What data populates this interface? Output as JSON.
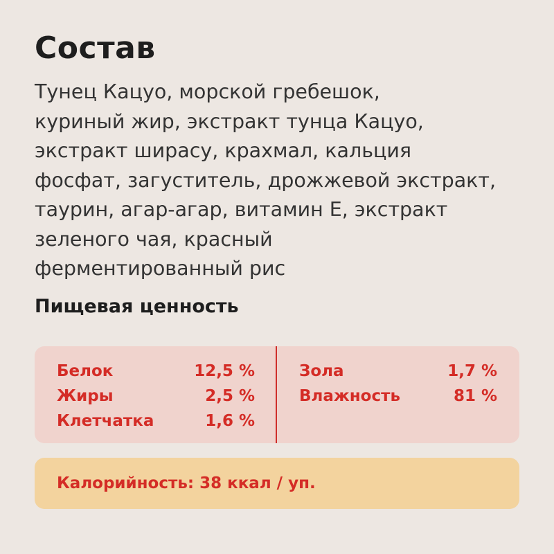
{
  "title": "Состав",
  "ingredients_lines": [
    "Тунец Кацуо, морской гребешок,",
    "куриный жир, экстракт тунца Кацуо,",
    "экстракт ширасу, крахмал, кальция",
    "фосфат, загуститель, дрожжевой экстракт,",
    "таурин, агар-агар, витамин Е, экстракт",
    "зеленого чая, красный",
    "ферментированный рис"
  ],
  "nutrition": {
    "title": "Пищевая ценность",
    "left": [
      {
        "label": "Белок",
        "value": "12,5 %"
      },
      {
        "label": "Жиры",
        "value": "2,5 %"
      },
      {
        "label": "Клетчатка",
        "value": "1,6 %"
      }
    ],
    "right": [
      {
        "label": "Зола",
        "value": "1,7 %"
      },
      {
        "label": "Влажность",
        "value": "81 %"
      }
    ]
  },
  "calories": "Калорийность: 38 ккал / уп.",
  "colors": {
    "background": "#ede7e2",
    "accent": "#d42c26",
    "nutrition_box": "#f0d3cd",
    "calorie_box": "#f3d39e",
    "text_dark": "#1e1e1e"
  }
}
